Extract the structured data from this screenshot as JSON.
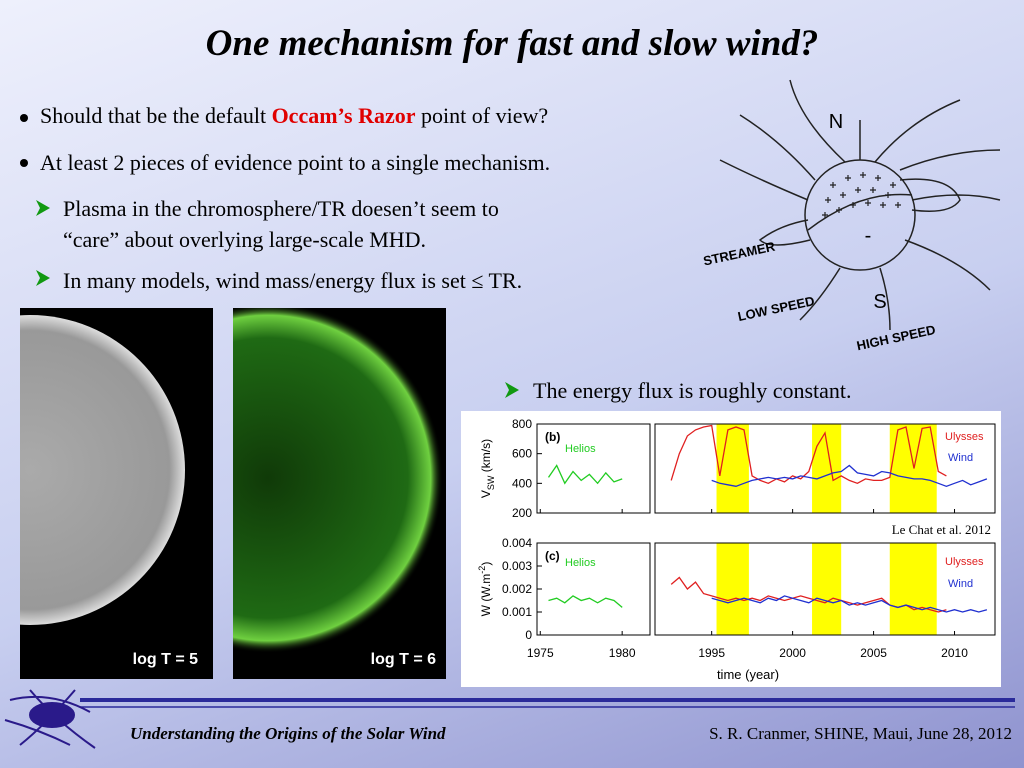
{
  "title": "One mechanism for fast and slow wind?",
  "bullets": [
    {
      "before": "Should that be the default ",
      "highlight": "Occam’s Razor",
      "after": " point of view?"
    },
    {
      "text": "At least 2 pieces of evidence point to a single mechanism."
    }
  ],
  "subbullets": [
    {
      "lines": [
        "Plasma in the chromosphere/TR doesen’t seem to",
        "“care” about overlying large-scale MHD."
      ]
    },
    {
      "lines": [
        "In many models, wind mass/energy flux is set ≤ TR."
      ]
    }
  ],
  "diagram": {
    "north": "N",
    "south": "S",
    "minus": "-",
    "streamer": "STREAMER",
    "low_speed": "LOW SPEED",
    "high_speed": "HIGH SPEED"
  },
  "images": [
    {
      "label": "log T = 5"
    },
    {
      "label": "log T = 6"
    }
  ],
  "note": "The energy flux is roughly constant.",
  "plot": {
    "type": "line",
    "xlabel": "time (year)",
    "xticks": [
      1975,
      1980,
      1995,
      2000,
      2005,
      2010
    ],
    "xlim_segments": [
      [
        1974.8,
        1981.7
      ],
      [
        1991.5,
        2012.5
      ]
    ],
    "bands": [
      [
        1995.3,
        1997.3
      ],
      [
        2001.2,
        2003
      ],
      [
        2006,
        2008.9
      ]
    ],
    "band_color": "#ffff00",
    "citation": "Le Chat et al. 2012",
    "panels": [
      {
        "label": "(b)",
        "ylabel": {
          "base": "V",
          "script": "SW",
          "rest": " (km/s)",
          "script_kind": "sub"
        },
        "ylim": [
          200,
          800
        ],
        "yticks": [
          200,
          400,
          600,
          800
        ],
        "series": [
          {
            "name": "Helios",
            "color": "#22cc22",
            "x": [
              1975.5,
              1976,
              1976.5,
              1977,
              1977.5,
              1978,
              1978.5,
              1979,
              1979.5,
              1980
            ],
            "values": [
              440,
              520,
              400,
              480,
              420,
              460,
              400,
              470,
              410,
              430
            ]
          },
          {
            "name": "Ulysses",
            "color": "#e02020",
            "x": [
              1992.5,
              1993,
              1993.5,
              1994,
              1994.5,
              1995,
              1995.5,
              1996,
              1996.5,
              1997,
              1997.5,
              1998,
              1998.5,
              1999,
              1999.5,
              2000,
              2000.5,
              2001,
              2001.5,
              2002,
              2002.5,
              2003,
              2003.5,
              2004,
              2004.5,
              2005,
              2005.5,
              2006,
              2006.5,
              2007,
              2007.5,
              2008,
              2008.5,
              2009,
              2009.5
            ],
            "values": [
              420,
              600,
              720,
              760,
              780,
              790,
              450,
              760,
              780,
              760,
              450,
              420,
              400,
              430,
              410,
              450,
              430,
              480,
              650,
              740,
              420,
              450,
              420,
              400,
              430,
              420,
              420,
              440,
              760,
              780,
              500,
              770,
              780,
              480,
              450
            ]
          },
          {
            "name": "Wind",
            "color": "#2030d0",
            "x": [
              1995,
              1995.5,
              1996,
              1996.5,
              1997,
              1997.5,
              1998,
              1998.5,
              1999,
              1999.5,
              2000,
              2000.5,
              2001,
              2001.5,
              2002,
              2002.5,
              2003,
              2003.5,
              2004,
              2004.5,
              2005,
              2005.5,
              2006,
              2006.5,
              2007,
              2007.5,
              2008,
              2008.5,
              2009,
              2009.5,
              2010,
              2010.5,
              2011,
              2011.5,
              2012
            ],
            "values": [
              420,
              400,
              390,
              380,
              400,
              420,
              430,
              440,
              430,
              440,
              430,
              450,
              440,
              430,
              450,
              470,
              480,
              520,
              470,
              460,
              450,
              480,
              470,
              450,
              440,
              430,
              430,
              420,
              400,
              380,
              400,
              420,
              390,
              410,
              430
            ]
          }
        ]
      },
      {
        "label": "(c)",
        "ylabel": {
          "base": "W (W.m",
          "script": "-2",
          "rest": ")",
          "script_kind": "sup"
        },
        "ylim": [
          0,
          0.004
        ],
        "yticks": [
          0,
          0.001,
          0.002,
          0.003,
          0.004
        ],
        "series": [
          {
            "name": "Helios",
            "color": "#22cc22",
            "x": [
              1975.5,
              1976,
              1976.5,
              1977,
              1977.5,
              1978,
              1978.5,
              1979,
              1979.5,
              1980
            ],
            "values": [
              0.0015,
              0.0016,
              0.0014,
              0.0017,
              0.0015,
              0.0016,
              0.0014,
              0.0016,
              0.0015,
              0.0012
            ]
          },
          {
            "name": "Ulysses",
            "color": "#e02020",
            "x": [
              1992.5,
              1993,
              1993.5,
              1994,
              1994.5,
              1995,
              1995.5,
              1996,
              1996.5,
              1997,
              1997.5,
              1998,
              1998.5,
              1999,
              1999.5,
              2000,
              2000.5,
              2001,
              2001.5,
              2002,
              2002.5,
              2003,
              2003.5,
              2004,
              2004.5,
              2005,
              2005.5,
              2006,
              2006.5,
              2007,
              2007.5,
              2008,
              2008.5,
              2009,
              2009.5
            ],
            "values": [
              0.0022,
              0.0025,
              0.002,
              0.0023,
              0.0018,
              0.0017,
              0.0016,
              0.0015,
              0.0016,
              0.0015,
              0.0016,
              0.0015,
              0.0017,
              0.0016,
              0.0015,
              0.0016,
              0.0017,
              0.0016,
              0.0015,
              0.0014,
              0.0016,
              0.0015,
              0.0014,
              0.0013,
              0.0014,
              0.0015,
              0.0016,
              0.0013,
              0.0012,
              0.0013,
              0.0011,
              0.0012,
              0.0011,
              0.001,
              0.0011
            ]
          },
          {
            "name": "Wind",
            "color": "#2030d0",
            "x": [
              1995,
              1995.5,
              1996,
              1996.5,
              1997,
              1997.5,
              1998,
              1998.5,
              1999,
              1999.5,
              2000,
              2000.5,
              2001,
              2001.5,
              2002,
              2002.5,
              2003,
              2003.5,
              2004,
              2004.5,
              2005,
              2005.5,
              2006,
              2006.5,
              2007,
              2007.5,
              2008,
              2008.5,
              2009,
              2009.5,
              2010,
              2010.5,
              2011,
              2011.5,
              2012
            ],
            "values": [
              0.0016,
              0.0015,
              0.0014,
              0.0015,
              0.0016,
              0.0015,
              0.0014,
              0.0016,
              0.0015,
              0.0017,
              0.0016,
              0.0015,
              0.0014,
              0.0016,
              0.0015,
              0.0014,
              0.0015,
              0.0013,
              0.0014,
              0.0013,
              0.0014,
              0.0015,
              0.0013,
              0.0012,
              0.0013,
              0.0012,
              0.0011,
              0.0012,
              0.0011,
              0.001,
              0.0011,
              0.001,
              0.0011,
              0.001,
              0.0011
            ]
          }
        ]
      }
    ]
  },
  "footer": {
    "left": "Understanding the Origins of the Solar Wind",
    "right": "S. R. Cranmer, SHINE, Maui, June 28, 2012"
  }
}
